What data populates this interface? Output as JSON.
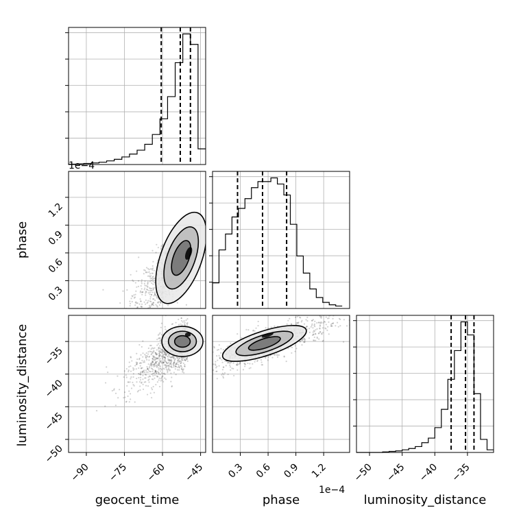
{
  "chart_data": {
    "type": "corner",
    "parameters": [
      "geocent_time",
      "phase",
      "luminosity_distance"
    ],
    "offset_text": "1e−4",
    "grid": true,
    "ranges": {
      "geocent_time": [
        -97,
        -43
      ],
      "phase": [
        0.0,
        1.48
      ],
      "luminosity_distance": [
        -52,
        -31
      ]
    },
    "ticks": {
      "geocent_time": {
        "values": [
          -90,
          -75,
          -60,
          -45
        ],
        "labels": [
          "−90",
          "−75",
          "−60",
          "−45"
        ]
      },
      "phase": {
        "values": [
          0.3,
          0.6,
          0.9,
          1.2
        ],
        "labels": [
          "0.3",
          "0.6",
          "0.9",
          "1.2"
        ]
      },
      "luminosity_distance": {
        "values": [
          -50,
          -45,
          -40,
          -35
        ],
        "labels": [
          "−50",
          "−45",
          "−40",
          "−35"
        ]
      }
    },
    "quantiles": {
      "geocent_time": [
        -60.5,
        -53,
        -49
      ],
      "phase": [
        0.27,
        0.54,
        0.8
      ],
      "luminosity_distance": [
        -37.5,
        -35.3,
        -34.0
      ]
    },
    "histograms": {
      "geocent_time": {
        "bin_edges": [
          -97,
          -94,
          -91,
          -88,
          -85,
          -82,
          -79,
          -76,
          -73,
          -70,
          -67,
          -64,
          -61,
          -58,
          -55,
          -52,
          -49,
          -46,
          -43
        ],
        "counts": [
          0.003,
          0.005,
          0.008,
          0.012,
          0.018,
          0.028,
          0.04,
          0.058,
          0.08,
          0.11,
          0.155,
          0.23,
          0.35,
          0.52,
          0.78,
          1.0,
          0.92,
          0.12
        ]
      },
      "phase": {
        "bin_edges": [
          0.0,
          0.07,
          0.14,
          0.21,
          0.28,
          0.35,
          0.42,
          0.49,
          0.56,
          0.63,
          0.7,
          0.77,
          0.84,
          0.91,
          0.98,
          1.05,
          1.12,
          1.19,
          1.26,
          1.33,
          1.4
        ],
        "counts": [
          0.21,
          0.48,
          0.61,
          0.75,
          0.82,
          0.9,
          0.99,
          1.04,
          1.04,
          1.07,
          1.02,
          0.93,
          0.69,
          0.43,
          0.29,
          0.16,
          0.09,
          0.05,
          0.03,
          0.02
        ]
      },
      "luminosity_distance": {
        "bin_edges": [
          -52,
          -51,
          -50,
          -49,
          -48,
          -47,
          -46,
          -45,
          -44,
          -43,
          -42,
          -41,
          -40,
          -39,
          -38,
          -37,
          -36,
          -35,
          -34,
          -33,
          -32,
          -31
        ],
        "counts": [
          0.0,
          0.0,
          0.0,
          0.0,
          0.004,
          0.008,
          0.012,
          0.02,
          0.03,
          0.045,
          0.075,
          0.11,
          0.19,
          0.33,
          0.56,
          0.78,
          1.0,
          0.9,
          0.45,
          0.1,
          0.02
        ]
      }
    },
    "density_peaks": {
      "phase_vs_geocent_time": {
        "x": -50.5,
        "y": 0.62
      },
      "luminosity_distance_vs_geocent_time": {
        "x": -50,
        "y": -35
      },
      "luminosity_distance_vs_phase": {
        "x": 0.62,
        "y": -35.3
      }
    }
  }
}
